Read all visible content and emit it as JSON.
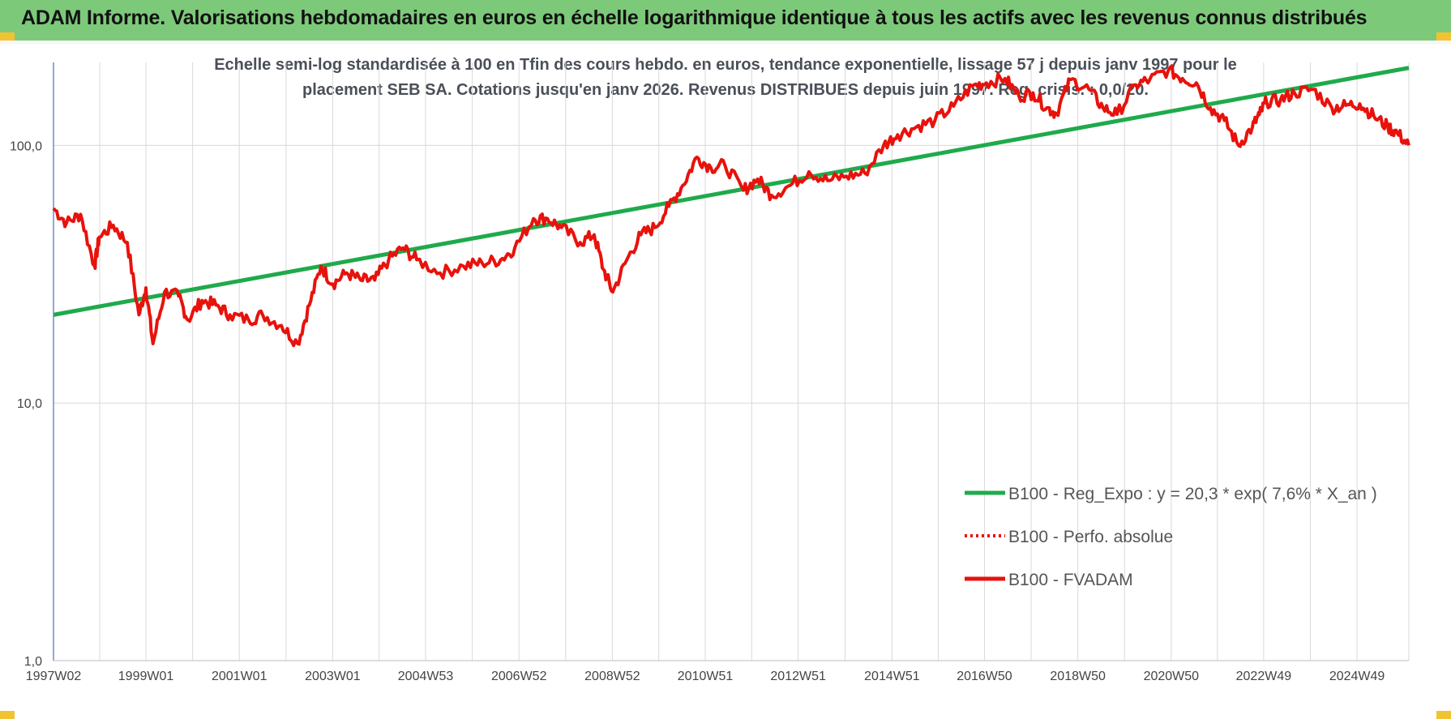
{
  "header": {
    "title": "ADAM Informe. Valorisations hebdomadaires en euros en échelle logarithmique identique à tous les actifs avec les revenus connus distribués"
  },
  "colors": {
    "header_bg": "#7dc97a",
    "regression": "#1faa4b",
    "fvadam": "#e8120c",
    "perfo": "#e8120c",
    "grid": "#d9d9d9",
    "corner": "#f1c232"
  },
  "chart_data": {
    "type": "line",
    "subtitle_line1": "Echelle semi-log standardisée à 100 en Tfin des cours hebdo. en euros, tendance exponentielle, lissage 57 j depuis janv 1997 pour le",
    "subtitle_line2": "placement SEB SA. Cotations jusqu'en janv 2026. Revenus DISTRIBUES depuis juin 1997. Reg. crisis. : 0,0/20.",
    "y_scale": "log",
    "ylim": [
      1,
      210
    ],
    "y_ticks": [
      {
        "value": 1,
        "label": "1,0"
      },
      {
        "value": 10,
        "label": "10,0"
      },
      {
        "value": 100,
        "label": "100,0"
      }
    ],
    "x_range": [
      1997.02,
      2026.05
    ],
    "x_ticks": [
      {
        "x": 1997.02,
        "label": "1997W02"
      },
      {
        "x": 1999.0,
        "label": "1999W01"
      },
      {
        "x": 2001.0,
        "label": "2001W01"
      },
      {
        "x": 2003.0,
        "label": "2003W01"
      },
      {
        "x": 2004.99,
        "label": "2004W53"
      },
      {
        "x": 2006.99,
        "label": "2006W52"
      },
      {
        "x": 2008.99,
        "label": "2008W52"
      },
      {
        "x": 2010.98,
        "label": "2010W51"
      },
      {
        "x": 2012.97,
        "label": "2012W51"
      },
      {
        "x": 2014.98,
        "label": "2014W51"
      },
      {
        "x": 2016.96,
        "label": "2016W50"
      },
      {
        "x": 2018.96,
        "label": "2018W50"
      },
      {
        "x": 2020.96,
        "label": "2020W50"
      },
      {
        "x": 2022.94,
        "label": "2022W49"
      },
      {
        "x": 2024.94,
        "label": "2024W49"
      }
    ],
    "grid": true,
    "legend_position": "lower-right",
    "legend": [
      {
        "label": "B100 - Reg_Expo : y = 20,3 * exp( 7,6% *  X_an )",
        "style": "solid-green"
      },
      {
        "label": "B100 - Perfo. absolue",
        "style": "dotted-red"
      },
      {
        "label": "B100 - FVADAM",
        "style": "solid-red"
      }
    ],
    "series": [
      {
        "name": "B100 - Reg_Expo : y = 20,3 * exp( 7,6% *  X_an )",
        "x": [
          1997.02,
          2026.05
        ],
        "values": [
          22,
          200
        ]
      },
      {
        "name": "B100 - FVADAM",
        "x": [
          1997.02,
          1997.3,
          1997.6,
          1997.9,
          1998.0,
          1998.3,
          1998.6,
          1998.85,
          1999.0,
          1999.15,
          1999.4,
          1999.7,
          1999.9,
          2000.2,
          2000.5,
          2000.8,
          2001.2,
          2001.5,
          2001.9,
          2002.25,
          2002.5,
          2002.75,
          2003.0,
          2003.3,
          2003.6,
          2003.9,
          2004.2,
          2004.5,
          2004.8,
          2005.3,
          2005.8,
          2006.2,
          2006.6,
          2006.9,
          2007.3,
          2007.6,
          2007.9,
          2008.3,
          2008.6,
          2008.8,
          2009.0,
          2009.3,
          2009.6,
          2009.9,
          2010.2,
          2010.5,
          2010.8,
          2011.1,
          2011.4,
          2011.8,
          2012.1,
          2012.4,
          2012.8,
          2013.2,
          2013.6,
          2014.0,
          2014.4,
          2014.8,
          2015.1,
          2015.5,
          2015.9,
          2016.3,
          2016.7,
          2017.0,
          2017.4,
          2017.7,
          2018.0,
          2018.3,
          2018.5,
          2018.8,
          2019.2,
          2019.5,
          2019.8,
          2020.2,
          2020.5,
          2020.9,
          2021.2,
          2021.5,
          2021.8,
          2022.1,
          2022.4,
          2022.7,
          2022.85,
          2023.0,
          2023.3,
          2023.6,
          2024.0,
          2024.4,
          2024.7,
          2025.0,
          2025.3,
          2025.6,
          2025.8,
          2026.05
        ],
        "values": [
          57,
          50,
          54,
          34,
          44,
          49,
          42,
          22,
          28,
          17,
          27,
          26,
          21,
          25,
          24,
          22,
          21,
          22,
          20,
          17,
          24,
          34,
          29,
          32,
          30,
          30,
          36,
          40,
          36,
          32,
          34,
          35,
          36,
          40,
          52,
          52,
          48,
          42,
          45,
          33,
          27,
          36,
          45,
          48,
          58,
          70,
          90,
          82,
          84,
          67,
          74,
          64,
          70,
          79,
          73,
          76,
          78,
          100,
          110,
          118,
          125,
          142,
          170,
          175,
          182,
          155,
          160,
          140,
          133,
          180,
          165,
          140,
          132,
          172,
          180,
          196,
          182,
          175,
          140,
          125,
          100,
          118,
          132,
          148,
          150,
          160,
          165,
          140,
          143,
          145,
          130,
          118,
          112,
          100
        ]
      }
    ]
  }
}
